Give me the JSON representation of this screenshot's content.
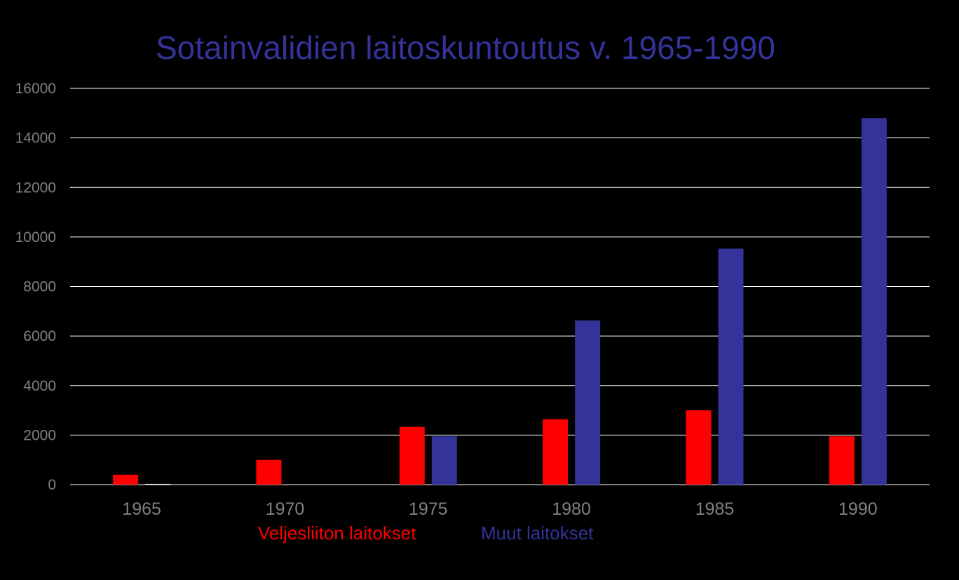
{
  "chart_data": {
    "type": "bar",
    "title": "Sotainvalidien laitoskuntoutus v. 1965-1990",
    "categories": [
      "1965",
      "1970",
      "1975",
      "1980",
      "1985",
      "1990"
    ],
    "series": [
      {
        "name": "Veljesliiton laitokset",
        "color": "#ff0000",
        "values": [
          400,
          1000,
          2330,
          2640,
          3000,
          1950
        ]
      },
      {
        "name": "Muut laitokset",
        "color": "#333399",
        "values": [
          30,
          0,
          1950,
          6630,
          9530,
          14800
        ]
      }
    ],
    "ylim": [
      0,
      16000
    ],
    "yticks": [
      "0",
      "2000",
      "4000",
      "6000",
      "8000",
      "10000",
      "12000",
      "14000",
      "16000"
    ],
    "grid": true,
    "legend_position": "bottom",
    "colors": {
      "background": "#000000",
      "title": "#333399",
      "axis_text": "#808080",
      "grid": "#ffffff",
      "small_bar": "#ffffff"
    }
  }
}
